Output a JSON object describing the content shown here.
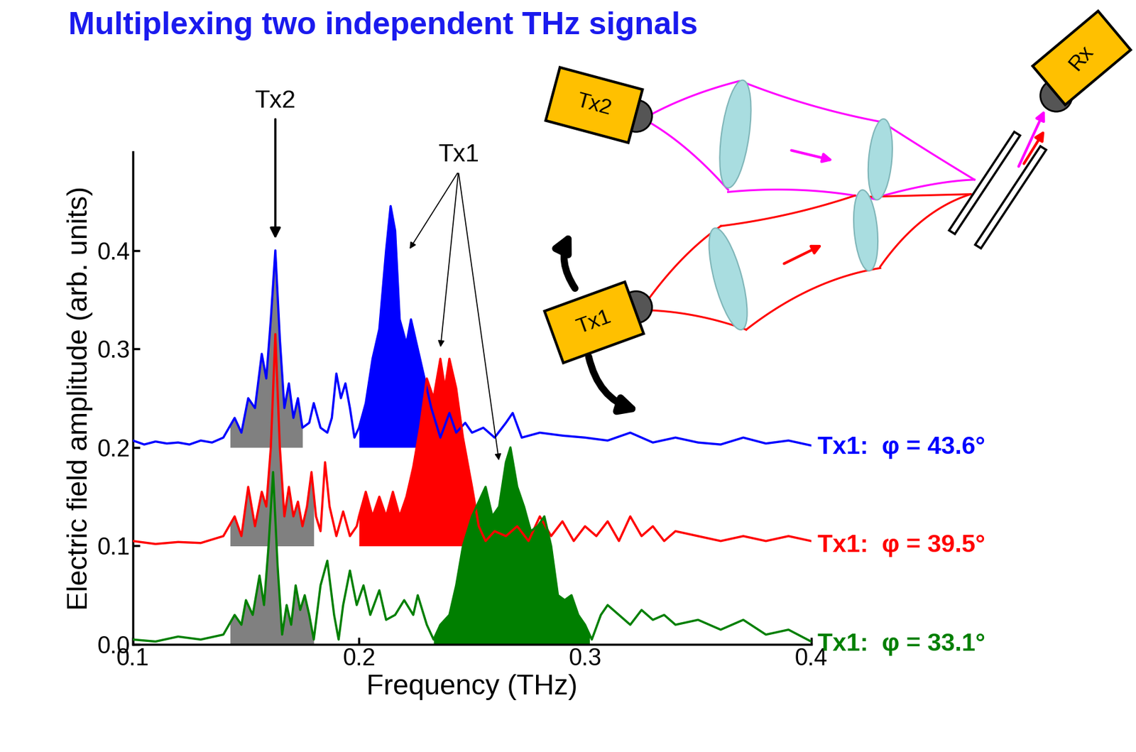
{
  "chart_data": {
    "type": "line",
    "title": "Multiplexing two independent THz signals",
    "x_label": "Frequency (THz)",
    "y_label": "Electric field amplitude (arb. units)",
    "xlim": [
      0.1,
      0.4
    ],
    "xticks": [
      0.1,
      0.2,
      0.3,
      0.4
    ],
    "ylim": [
      0.0,
      0.5
    ],
    "yticks": [
      0.0,
      0.1,
      0.2,
      0.3,
      0.4
    ],
    "series": [
      {
        "name": "Tx1:  φ = 43.6°",
        "color": "#0000ff",
        "baseline": 0.2,
        "fills": [
          {
            "from": 0.143,
            "to": 0.175,
            "color": "#808080"
          },
          {
            "from": 0.2,
            "to": 0.232,
            "color": "#0000ff"
          }
        ],
        "x": [
          0.1,
          0.105,
          0.11,
          0.115,
          0.12,
          0.125,
          0.13,
          0.135,
          0.14,
          0.145,
          0.148,
          0.151,
          0.154,
          0.157,
          0.159,
          0.161,
          0.163,
          0.165,
          0.167,
          0.169,
          0.171,
          0.173,
          0.175,
          0.178,
          0.18,
          0.183,
          0.186,
          0.188,
          0.19,
          0.192,
          0.194,
          0.196,
          0.198,
          0.2,
          0.203,
          0.206,
          0.209,
          0.212,
          0.214,
          0.216,
          0.218,
          0.221,
          0.223,
          0.226,
          0.229,
          0.232,
          0.236,
          0.24,
          0.243,
          0.247,
          0.25,
          0.255,
          0.26,
          0.265,
          0.268,
          0.272,
          0.28,
          0.29,
          0.3,
          0.31,
          0.32,
          0.325,
          0.33,
          0.34,
          0.35,
          0.36,
          0.37,
          0.38,
          0.39,
          0.4
        ],
        "values": [
          0.207,
          0.203,
          0.206,
          0.204,
          0.205,
          0.203,
          0.207,
          0.205,
          0.21,
          0.23,
          0.215,
          0.25,
          0.24,
          0.295,
          0.27,
          0.33,
          0.4,
          0.31,
          0.24,
          0.265,
          0.23,
          0.25,
          0.22,
          0.225,
          0.245,
          0.22,
          0.215,
          0.23,
          0.275,
          0.25,
          0.265,
          0.24,
          0.21,
          0.22,
          0.245,
          0.29,
          0.32,
          0.4,
          0.445,
          0.42,
          0.33,
          0.305,
          0.33,
          0.3,
          0.27,
          0.24,
          0.21,
          0.235,
          0.215,
          0.225,
          0.215,
          0.22,
          0.21,
          0.225,
          0.235,
          0.21,
          0.215,
          0.212,
          0.21,
          0.207,
          0.215,
          0.21,
          0.205,
          0.21,
          0.205,
          0.203,
          0.21,
          0.204,
          0.207,
          0.202
        ]
      },
      {
        "name": "Tx1:  φ = 39.5°",
        "color": "#ff0000",
        "baseline": 0.1,
        "fills": [
          {
            "from": 0.143,
            "to": 0.18,
            "color": "#808080"
          },
          {
            "from": 0.2,
            "to": 0.255,
            "color": "#ff0000"
          }
        ],
        "x": [
          0.1,
          0.11,
          0.12,
          0.13,
          0.14,
          0.145,
          0.148,
          0.151,
          0.154,
          0.157,
          0.159,
          0.161,
          0.163,
          0.165,
          0.167,
          0.169,
          0.171,
          0.173,
          0.175,
          0.177,
          0.179,
          0.181,
          0.183,
          0.185,
          0.187,
          0.19,
          0.193,
          0.196,
          0.199,
          0.2,
          0.203,
          0.206,
          0.209,
          0.212,
          0.215,
          0.218,
          0.221,
          0.224,
          0.227,
          0.23,
          0.233,
          0.236,
          0.238,
          0.24,
          0.243,
          0.246,
          0.25,
          0.253,
          0.256,
          0.26,
          0.265,
          0.27,
          0.275,
          0.28,
          0.285,
          0.29,
          0.295,
          0.3,
          0.305,
          0.31,
          0.315,
          0.32,
          0.325,
          0.33,
          0.335,
          0.34,
          0.35,
          0.36,
          0.37,
          0.38,
          0.39,
          0.4
        ],
        "values": [
          0.105,
          0.102,
          0.104,
          0.103,
          0.11,
          0.13,
          0.11,
          0.16,
          0.12,
          0.155,
          0.14,
          0.2,
          0.315,
          0.2,
          0.13,
          0.16,
          0.13,
          0.145,
          0.12,
          0.14,
          0.175,
          0.13,
          0.115,
          0.185,
          0.14,
          0.11,
          0.135,
          0.11,
          0.12,
          0.13,
          0.155,
          0.13,
          0.15,
          0.13,
          0.155,
          0.13,
          0.15,
          0.18,
          0.22,
          0.27,
          0.25,
          0.29,
          0.26,
          0.29,
          0.26,
          0.21,
          0.16,
          0.12,
          0.105,
          0.115,
          0.11,
          0.12,
          0.105,
          0.13,
          0.11,
          0.125,
          0.105,
          0.12,
          0.11,
          0.125,
          0.105,
          0.13,
          0.11,
          0.12,
          0.105,
          0.115,
          0.11,
          0.105,
          0.11,
          0.105,
          0.11,
          0.105
        ]
      },
      {
        "name": "Tx1:  φ = 33.1°",
        "color": "#007f00",
        "baseline": 0.0,
        "fills": [
          {
            "from": 0.143,
            "to": 0.18,
            "color": "#808080"
          },
          {
            "from": 0.233,
            "to": 0.302,
            "color": "#007f00"
          }
        ],
        "x": [
          0.1,
          0.11,
          0.12,
          0.13,
          0.14,
          0.145,
          0.148,
          0.15,
          0.153,
          0.156,
          0.158,
          0.16,
          0.162,
          0.164,
          0.166,
          0.168,
          0.17,
          0.172,
          0.174,
          0.176,
          0.178,
          0.18,
          0.183,
          0.186,
          0.189,
          0.191,
          0.193,
          0.196,
          0.199,
          0.202,
          0.205,
          0.209,
          0.212,
          0.216,
          0.22,
          0.224,
          0.226,
          0.23,
          0.233,
          0.236,
          0.24,
          0.243,
          0.246,
          0.25,
          0.253,
          0.256,
          0.259,
          0.262,
          0.265,
          0.267,
          0.27,
          0.273,
          0.276,
          0.279,
          0.282,
          0.285,
          0.288,
          0.291,
          0.294,
          0.297,
          0.3,
          0.303,
          0.307,
          0.31,
          0.315,
          0.32,
          0.325,
          0.33,
          0.335,
          0.34,
          0.35,
          0.36,
          0.37,
          0.38,
          0.39,
          0.4
        ],
        "values": [
          0.005,
          0.003,
          0.008,
          0.005,
          0.01,
          0.03,
          0.02,
          0.045,
          0.03,
          0.07,
          0.04,
          0.1,
          0.175,
          0.08,
          0.01,
          0.04,
          0.02,
          0.06,
          0.035,
          0.05,
          0.03,
          0.005,
          0.06,
          0.085,
          0.03,
          0.005,
          0.04,
          0.075,
          0.04,
          0.06,
          0.03,
          0.055,
          0.025,
          0.03,
          0.045,
          0.03,
          0.05,
          0.02,
          0.005,
          0.02,
          0.03,
          0.06,
          0.1,
          0.13,
          0.145,
          0.16,
          0.13,
          0.14,
          0.185,
          0.2,
          0.16,
          0.14,
          0.115,
          0.12,
          0.13,
          0.1,
          0.05,
          0.045,
          0.05,
          0.03,
          0.02,
          0.005,
          0.03,
          0.04,
          0.03,
          0.02,
          0.035,
          0.025,
          0.03,
          0.02,
          0.025,
          0.015,
          0.025,
          0.01,
          0.015,
          0.003
        ]
      }
    ],
    "annotations": [
      {
        "text": "Tx2",
        "x": 0.163,
        "y": 0.54,
        "arrow_to": [
          [
            0.163,
            0.41
          ]
        ]
      },
      {
        "text": "Tx1",
        "x": 0.244,
        "y": 0.485,
        "arrow_to": [
          [
            0.222,
            0.4
          ],
          [
            0.236,
            0.3
          ],
          [
            0.262,
            0.185
          ]
        ]
      }
    ]
  },
  "diagram": {
    "transmitters": [
      "Tx2",
      "Tx1"
    ],
    "receiver": "Rx"
  }
}
